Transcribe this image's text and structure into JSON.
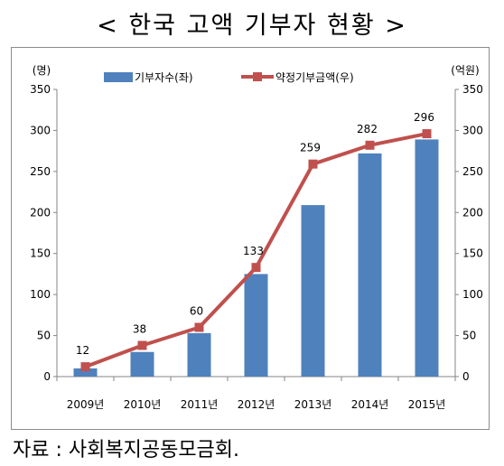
{
  "title": "< 한국 고액 기부자 현황 >",
  "source": "자료 : 사회복지공동모금회.",
  "chart_data": {
    "type": "bar",
    "categories": [
      "2009년",
      "2010년",
      "2011년",
      "2012년",
      "2013년",
      "2014년",
      "2015년"
    ],
    "series": [
      {
        "name": "기부자수(좌)",
        "type": "bar",
        "axis": "left",
        "color": "#4f81bd",
        "values": [
          10,
          30,
          53,
          125,
          209,
          272,
          289
        ]
      },
      {
        "name": "약정기부금액(우)",
        "type": "line",
        "axis": "right",
        "color": "#c0504d",
        "values": [
          12,
          38,
          60,
          133,
          259,
          282,
          296
        ]
      }
    ],
    "y_left": {
      "unit": "(명)",
      "ylim": [
        0,
        350
      ],
      "ticks": [
        0,
        50,
        100,
        150,
        200,
        250,
        300,
        350
      ]
    },
    "y_right": {
      "unit": "(억원)",
      "ylim": [
        0,
        350
      ],
      "ticks": [
        0,
        50,
        100,
        150,
        200,
        250,
        300,
        350
      ]
    },
    "data_labels": [
      "12",
      "38",
      "60",
      "133",
      "259",
      "282",
      "296"
    ],
    "legend_position": "top",
    "grid": false
  }
}
